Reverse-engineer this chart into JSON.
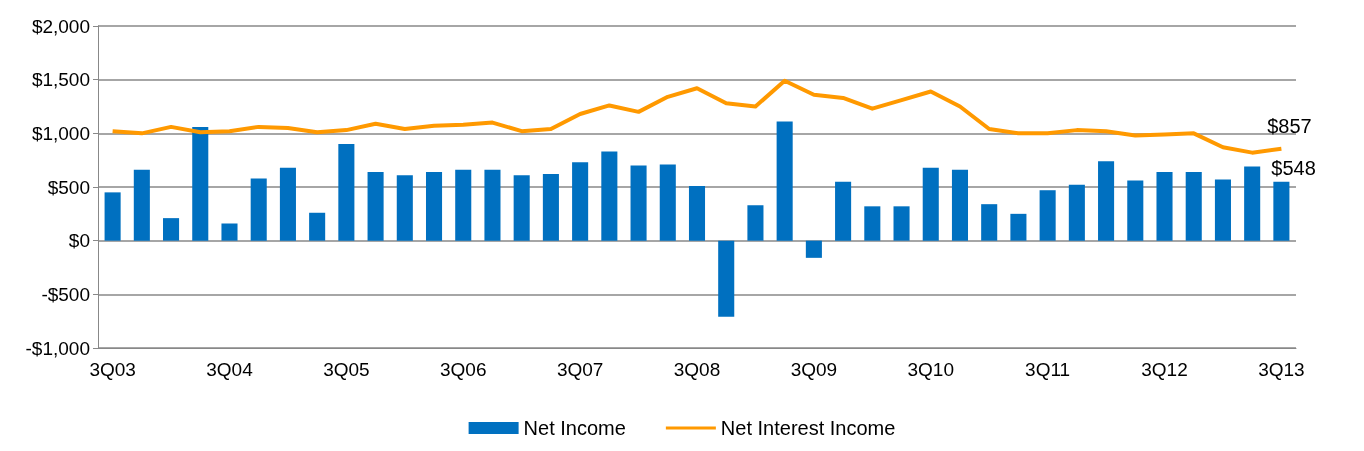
{
  "chart_data": {
    "type": "bar",
    "categories": [
      "3Q03",
      null,
      null,
      null,
      "3Q04",
      null,
      null,
      null,
      "3Q05",
      null,
      null,
      null,
      "3Q06",
      null,
      null,
      null,
      "3Q07",
      null,
      null,
      null,
      "3Q08",
      null,
      null,
      null,
      "3Q09",
      null,
      null,
      null,
      "3Q10",
      null,
      null,
      null,
      "3Q11",
      null,
      null,
      null,
      "3Q12",
      null,
      null,
      null,
      "3Q13"
    ],
    "series": [
      {
        "name": "Net Income",
        "color": "#0070c0",
        "values": [
          450,
          660,
          210,
          1060,
          160,
          580,
          680,
          260,
          900,
          640,
          610,
          640,
          660,
          660,
          610,
          620,
          730,
          830,
          700,
          710,
          510,
          -710,
          330,
          1110,
          -160,
          550,
          320,
          320,
          680,
          660,
          340,
          250,
          470,
          520,
          740,
          560,
          640,
          640,
          570,
          690,
          548
        ],
        "value_labels": [
          null,
          null,
          null,
          null,
          null,
          null,
          null,
          null,
          null,
          null,
          null,
          null,
          null,
          null,
          null,
          null,
          null,
          null,
          null,
          null,
          null,
          null,
          null,
          null,
          null,
          null,
          null,
          null,
          null,
          null,
          null,
          null,
          null,
          null,
          null,
          null,
          null,
          null,
          null,
          null,
          "$548"
        ]
      },
      {
        "name": "Net Interest Income",
        "type": "line",
        "color": "#ff9900",
        "values": [
          1020,
          1000,
          1060,
          1010,
          1020,
          1060,
          1050,
          1010,
          1030,
          1090,
          1040,
          1070,
          1080,
          1100,
          1020,
          1040,
          1180,
          1260,
          1200,
          1340,
          1420,
          1280,
          1250,
          1490,
          1360,
          1330,
          1230,
          1310,
          1390,
          1250,
          1040,
          1000,
          1000,
          1030,
          1020,
          980,
          990,
          1000,
          870,
          820,
          857
        ],
        "value_labels": [
          null,
          null,
          null,
          null,
          null,
          null,
          null,
          null,
          null,
          null,
          null,
          null,
          null,
          null,
          null,
          null,
          null,
          null,
          null,
          null,
          null,
          null,
          null,
          null,
          null,
          null,
          null,
          null,
          null,
          null,
          null,
          null,
          null,
          null,
          null,
          null,
          null,
          null,
          null,
          null,
          "$857"
        ]
      }
    ],
    "ylim": [
      -1000,
      2000
    ],
    "yticks": [
      {
        "value": -1000,
        "label": "-$1,000"
      },
      {
        "value": -500,
        "label": "-$500"
      },
      {
        "value": 0,
        "label": "$0"
      },
      {
        "value": 500,
        "label": "$500"
      },
      {
        "value": 1000,
        "label": "$1,000"
      },
      {
        "value": 1500,
        "label": "$1,500"
      },
      {
        "value": 2000,
        "label": "$2,000"
      }
    ],
    "grid": "y",
    "legend": "bottom",
    "marker": "none",
    "line_style": "solid"
  }
}
